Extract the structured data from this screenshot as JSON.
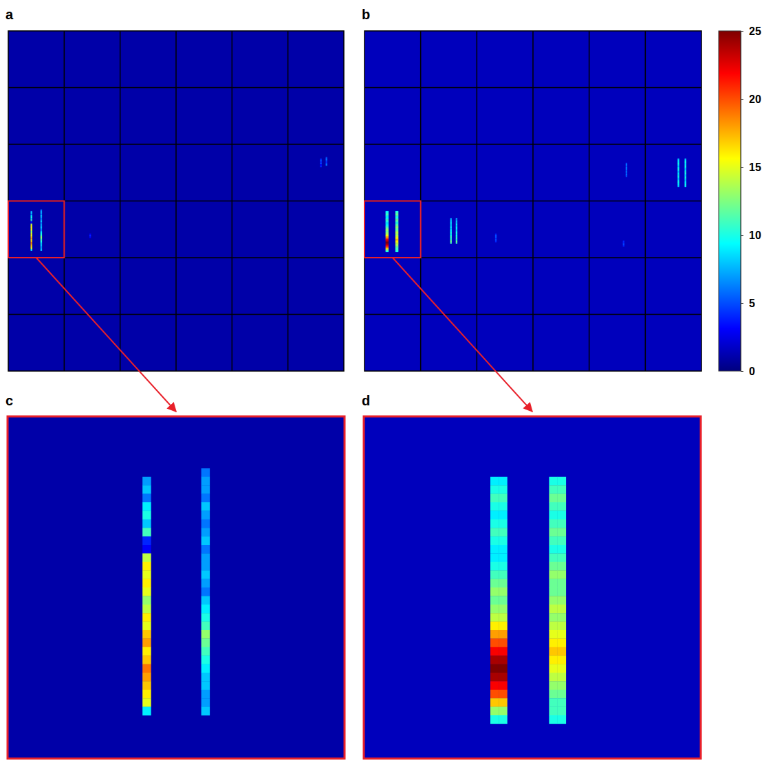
{
  "chart_data": {
    "type": "heatmap",
    "colorbar": {
      "range": [
        0,
        25
      ],
      "ticks": [
        0,
        5,
        10,
        15,
        20,
        25
      ]
    },
    "panels": [
      {
        "label": "a",
        "tiles": [
          6,
          6
        ],
        "tile_size": 40,
        "background": 1,
        "zoom": {
          "label": "c",
          "tile": [
            3,
            0
          ]
        },
        "streaks": [
          {
            "tile": [
              3,
              0
            ],
            "cols": [
              16
            ],
            "row_start": 7,
            "values": [
              7,
              8,
              6,
              9,
              10,
              8,
              11,
              4,
              3,
              14,
              16,
              15,
              16,
              15,
              13,
              14,
              16,
              15,
              17,
              18,
              16,
              17,
              19,
              18,
              17,
              16,
              15,
              9
            ]
          },
          {
            "tile": [
              3,
              0
            ],
            "cols": [
              23
            ],
            "row_start": 6,
            "values": [
              6,
              7,
              7,
              6,
              8,
              7,
              6,
              7,
              8,
              6,
              7,
              7,
              8,
              7,
              6,
              8,
              9,
              10,
              11,
              13,
              12,
              11,
              10,
              9,
              8,
              8,
              7,
              7,
              8
            ]
          },
          {
            "tile": [
              2,
              5
            ],
            "cols": [
              23
            ],
            "row_start": 10,
            "values": [
              4,
              5,
              4,
              5,
              3,
              4
            ]
          },
          {
            "tile": [
              2,
              5
            ],
            "cols": [
              27
            ],
            "row_start": 9,
            "values": [
              5,
              6,
              5,
              4,
              5,
              6
            ]
          },
          {
            "tile": [
              3,
              1
            ],
            "cols": [
              18
            ],
            "row_start": 23,
            "values": [
              3,
              4,
              3
            ]
          }
        ]
      },
      {
        "label": "b",
        "tiles": [
          6,
          6
        ],
        "tile_size": 40,
        "background": 1.5,
        "zoom": {
          "label": "d",
          "tile": [
            3,
            0
          ]
        },
        "streaks": [
          {
            "tile": [
              3,
              0
            ],
            "cols": [
              15,
              16
            ],
            "row_start": 7,
            "values": [
              9,
              10,
              11,
              10,
              9,
              10,
              11,
              10,
              9,
              9,
              10,
              11,
              12,
              13,
              12,
              13,
              14,
              16,
              18,
              20,
              22,
              24,
              25,
              24,
              22,
              20,
              17,
              13,
              10
            ]
          },
          {
            "tile": [
              3,
              0
            ],
            "cols": [
              22,
              23
            ],
            "row_start": 7,
            "values": [
              10,
              11,
              12,
              11,
              10,
              11,
              12,
              11,
              10,
              11,
              12,
              13,
              12,
              12,
              13,
              14,
              13,
              14,
              15,
              16,
              17,
              16,
              15,
              14,
              13,
              12,
              11,
              11,
              10
            ]
          },
          {
            "tile": [
              3,
              1
            ],
            "cols": [
              21
            ],
            "row_start": 12,
            "values": [
              7,
              8,
              8,
              9,
              8,
              8,
              9,
              8,
              9,
              9,
              10,
              9,
              10,
              11,
              10,
              11,
              12,
              11
            ]
          },
          {
            "tile": [
              3,
              1
            ],
            "cols": [
              25
            ],
            "row_start": 12,
            "values": [
              7,
              7,
              8,
              8,
              9,
              8,
              9,
              9,
              8,
              9,
              10,
              9,
              10,
              10,
              11,
              10,
              12,
              11
            ]
          },
          {
            "tile": [
              3,
              2
            ],
            "cols": [
              13
            ],
            "row_start": 23,
            "values": [
              4,
              5,
              5,
              4,
              5,
              4
            ]
          },
          {
            "tile": [
              2,
              4
            ],
            "cols": [
              26
            ],
            "row_start": 13,
            "values": [
              5,
              6,
              5,
              6,
              6,
              5,
              6,
              5,
              6,
              5
            ]
          },
          {
            "tile": [
              2,
              5
            ],
            "cols": [
              23
            ],
            "row_start": 10,
            "values": [
              8,
              9,
              9,
              10,
              9,
              8,
              9,
              10,
              9,
              8,
              9,
              9,
              10,
              9,
              8,
              9,
              10,
              9,
              9,
              8
            ]
          },
          {
            "tile": [
              2,
              5
            ],
            "cols": [
              28
            ],
            "row_start": 10,
            "values": [
              8,
              9,
              10,
              9,
              9,
              10,
              9,
              8,
              9,
              10,
              10,
              9,
              9,
              10,
              9,
              8,
              9,
              9,
              10,
              9
            ]
          },
          {
            "tile": [
              3,
              4
            ],
            "cols": [
              24
            ],
            "row_start": 28,
            "values": [
              4,
              4,
              5,
              4
            ]
          }
        ]
      }
    ]
  }
}
